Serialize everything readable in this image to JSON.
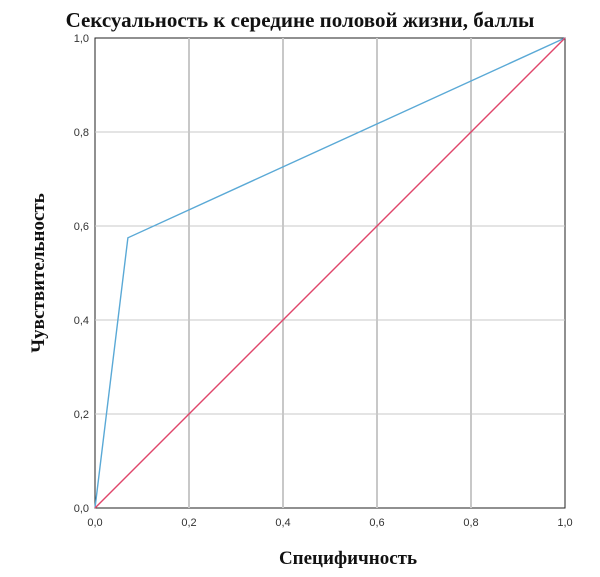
{
  "chart_data": {
    "type": "line",
    "title": "Сексуальность к середине половой жизни, баллы",
    "xlabel": "Специфичность",
    "ylabel": "Чувствительность",
    "xlim": [
      0.0,
      1.0
    ],
    "ylim": [
      0.0,
      1.0
    ],
    "x_ticks": [
      "0,0",
      "0,2",
      "0,4",
      "0,6",
      "0,8",
      "1,0"
    ],
    "y_ticks": [
      "0,0",
      "0,2",
      "0,4",
      "0,6",
      "0,8",
      "1,0"
    ],
    "grid": true,
    "series": [
      {
        "color": "#5aa9d6",
        "points": [
          {
            "x": 0.0,
            "y": 0.0
          },
          {
            "x": 0.07,
            "y": 0.575
          },
          {
            "x": 1.0,
            "y": 1.0
          }
        ]
      },
      {
        "color": "#e0456b",
        "points": [
          {
            "x": 0.0,
            "y": 0.0
          },
          {
            "x": 1.0,
            "y": 1.0
          }
        ]
      }
    ]
  }
}
